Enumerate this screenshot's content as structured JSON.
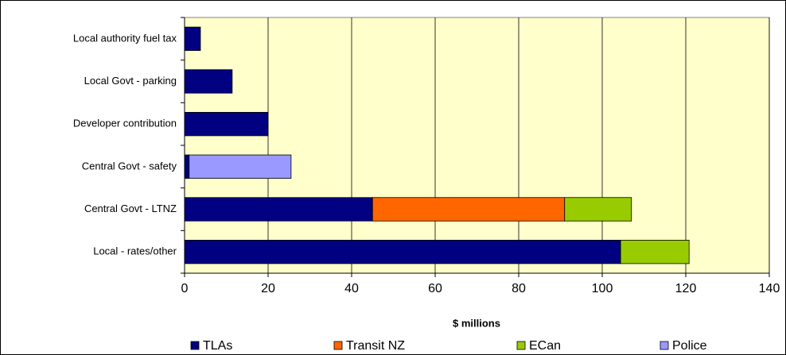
{
  "chart_data": {
    "type": "bar",
    "orientation": "horizontal",
    "stacked": true,
    "xlabel": "$ millions",
    "categories": [
      "Local authority fuel tax",
      "Local Govt - parking",
      "Developer contribution",
      "Central Govt - safety",
      "Central Govt - LTNZ",
      "Local - rates/other"
    ],
    "series": [
      {
        "name": "TLAs",
        "color": "#000080",
        "values": [
          3.8,
          11.4,
          20,
          1.1,
          45,
          104.4
        ]
      },
      {
        "name": "Transit NZ",
        "color": "#ff6600",
        "values": [
          null,
          null,
          null,
          null,
          46,
          null
        ]
      },
      {
        "name": "ECan",
        "color": "#99cc00",
        "values": [
          null,
          null,
          null,
          null,
          16,
          16.4
        ]
      },
      {
        "name": "Police",
        "color": "#9999ff",
        "values": [
          null,
          null,
          null,
          24.4,
          null,
          null
        ]
      }
    ],
    "xlim": [
      0,
      140
    ],
    "xticks": [
      0,
      20,
      40,
      60,
      80,
      100,
      120,
      140
    ],
    "grid": true,
    "background": "#ffffcc",
    "legend": "bottom"
  }
}
